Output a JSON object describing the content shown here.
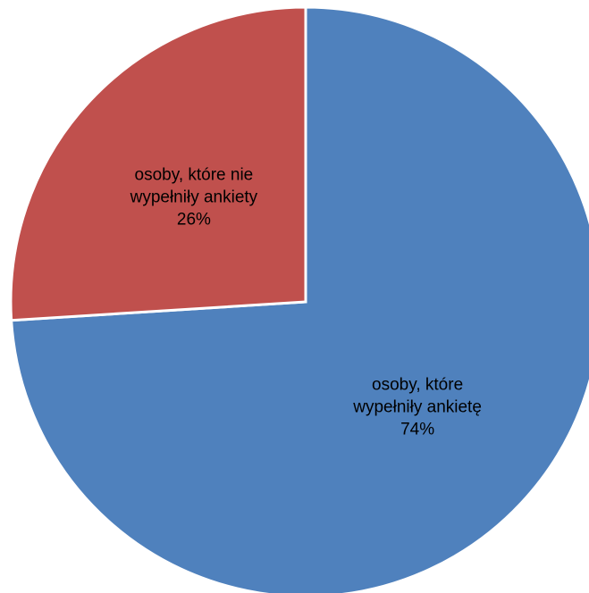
{
  "chart_data": {
    "type": "pie",
    "slices": [
      {
        "label_lines": [
          "osoby, które",
          "wypełniły ankietę"
        ],
        "value": 74,
        "value_label": "74%",
        "color": "#4F81BD"
      },
      {
        "label_lines": [
          "osoby, które nie",
          "wypełniły ankiety"
        ],
        "value": 26,
        "value_label": "26%",
        "color": "#C0504D"
      }
    ],
    "start_angle_deg": 0,
    "direction": "clockwise",
    "legend": "none",
    "data_labels": "inside"
  }
}
